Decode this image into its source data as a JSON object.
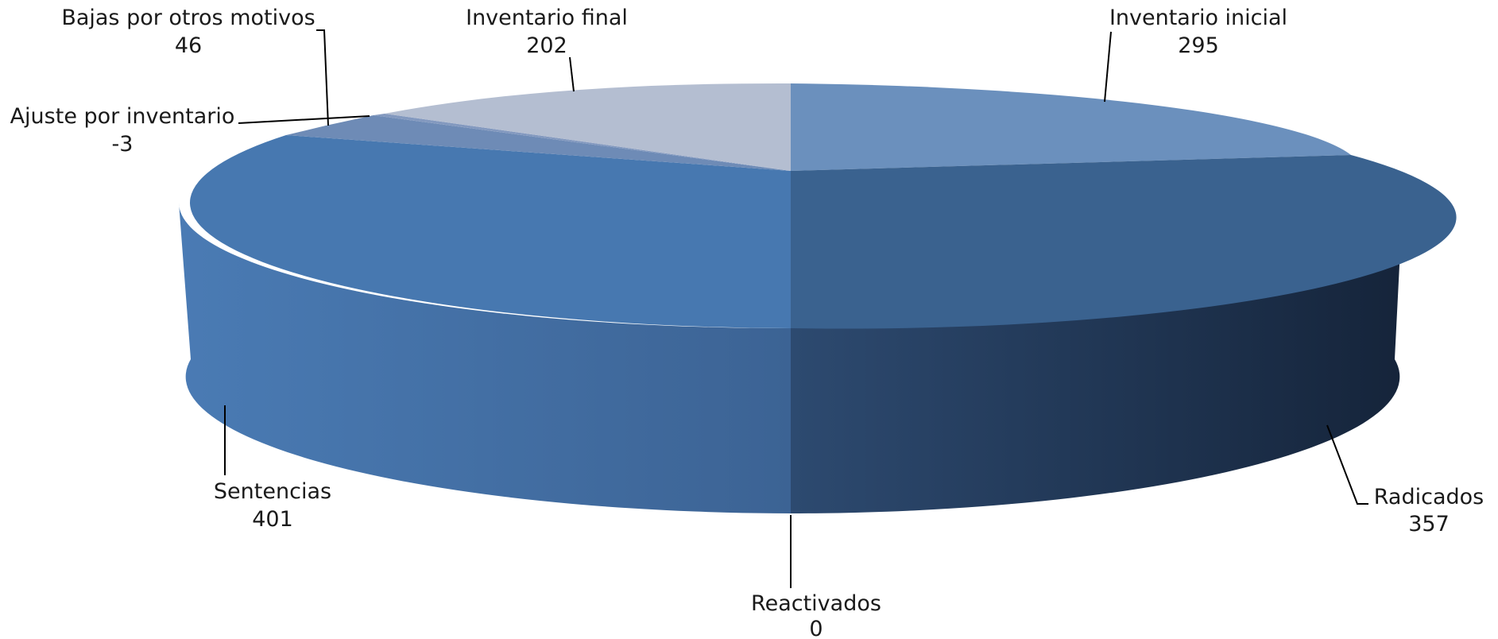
{
  "chart_data": {
    "type": "pie",
    "title": "",
    "variant": "3d",
    "slices": [
      {
        "key": "inventario_inicial",
        "label": "Inventario inicial",
        "value": 295,
        "color": "#6b90bd"
      },
      {
        "key": "radicados",
        "label": "Radicados",
        "value": 357,
        "color": "#3a628f"
      },
      {
        "key": "reactivados",
        "label": "Reactivados",
        "value": 0,
        "color": "#2c4c72"
      },
      {
        "key": "sentencias",
        "label": "Sentencias",
        "value": 401,
        "color": "#4778b0"
      },
      {
        "key": "ajuste_por_inventario",
        "label": "Ajuste por inventario",
        "value": -3,
        "color": "#6e8bb6"
      },
      {
        "key": "bajas_por_otros_motivos",
        "label": "Bajas por otros motivos",
        "value": 46,
        "color": "#8399bf"
      },
      {
        "key": "inventario_final",
        "label": "Inventario final",
        "value": 202,
        "color": "#b4bed1"
      }
    ]
  }
}
